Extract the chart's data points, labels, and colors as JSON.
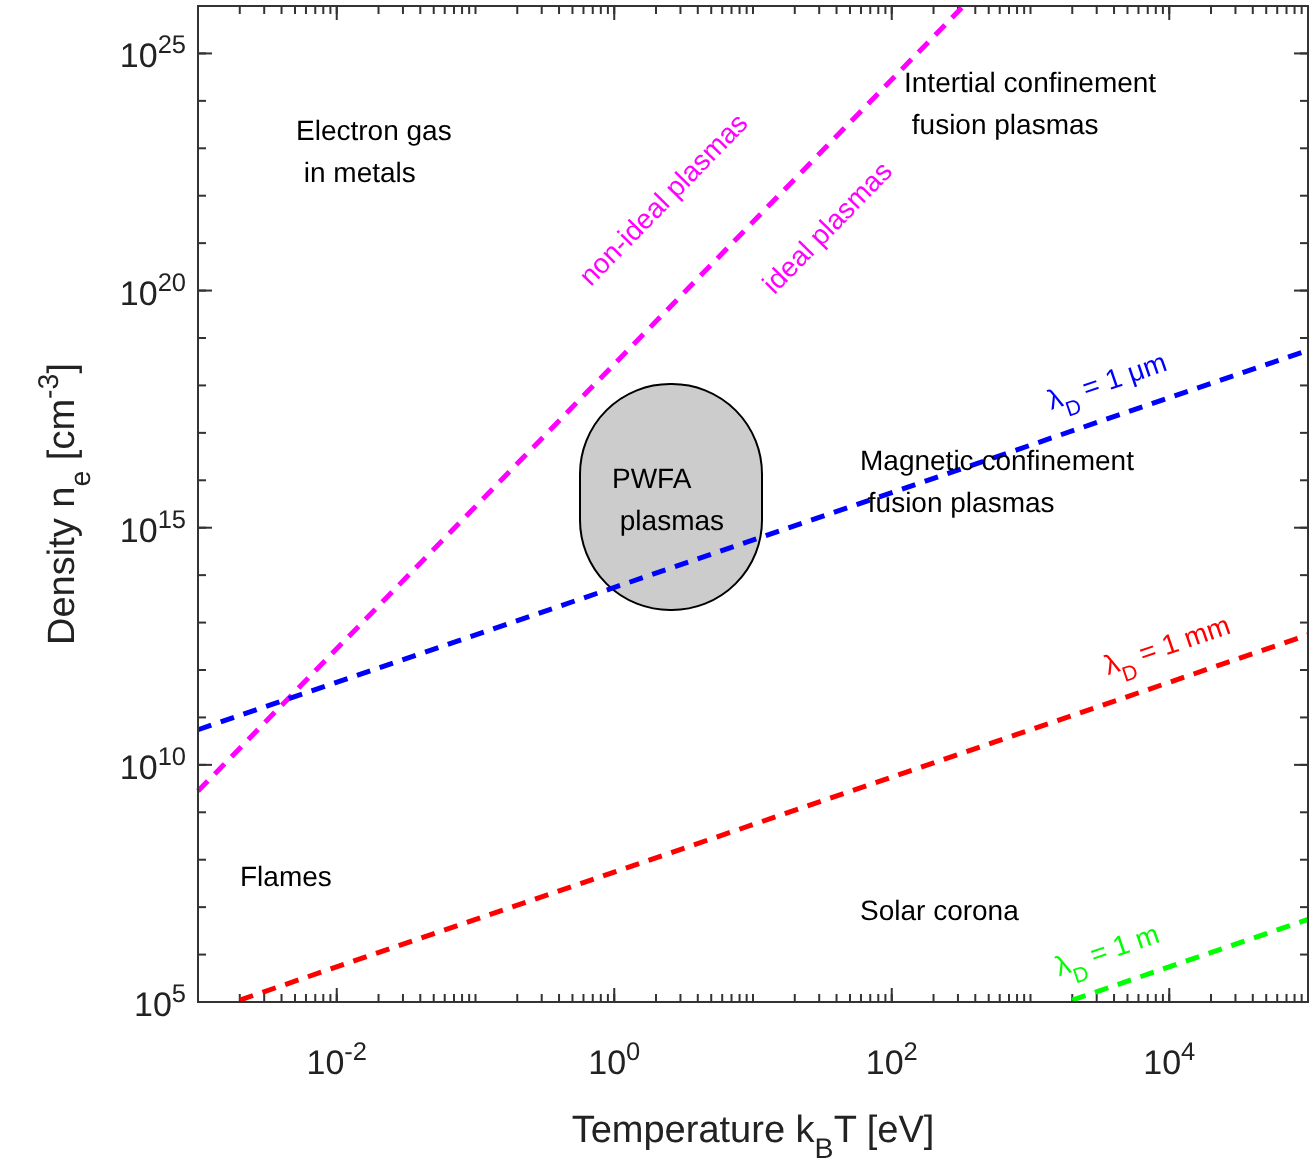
{
  "chart_data": {
    "type": "line",
    "xlabel": "Temperature k$_{B}$T [eV]",
    "ylabel": "Density n$_{e}$ [cm$^{-3}$]",
    "log": "xy",
    "grid": false,
    "line_style": "dashed",
    "xlim": [
      0.001,
      100000
    ],
    "ylim": [
      100000,
      1e+26
    ],
    "xticks": [
      {
        "value": 0.01,
        "label": "10$^{-2}$"
      },
      {
        "value": 1,
        "label": "10$^{0}$"
      },
      {
        "value": 100,
        "label": "10$^{2}$"
      },
      {
        "value": 10000,
        "label": "10$^{4}$"
      }
    ],
    "yticks": [
      {
        "value": 100000,
        "label": "10$^{5}$"
      },
      {
        "value": 10000000000.0,
        "label": "10$^{10}$"
      },
      {
        "value": 1000000000000000.0,
        "label": "10$^{15}$"
      },
      {
        "value": 1e+20,
        "label": "10$^{20}$"
      },
      {
        "value": 1e+25,
        "label": "10$^{25}$"
      }
    ],
    "series": [
      {
        "color": "#ff00ff",
        "x": [
          0.001,
          329
        ],
        "values": [
          2800000000.0,
          1e+26
        ]
      },
      {
        "name": "λ$_{D}$ = 1 μm",
        "color": "#0000ff",
        "x": [
          0.001,
          100000
        ],
        "values": [
          55000000000.0,
          5.5e+18
        ]
      },
      {
        "name": "λ$_{D}$ = 1 mm",
        "color": "#ff0000",
        "x": [
          0.002,
          100000
        ],
        "values": [
          110000,
          5500000000000.0
        ]
      },
      {
        "name": "λ$_{D}$ = 1 m",
        "color": "#00ff00",
        "x": [
          2000,
          100000
        ],
        "values": [
          110000,
          5500000.0
        ]
      }
    ],
    "annotations": [
      "Electron gas\n in metals",
      "Intertial confinement\n fusion plasmas",
      "Magnetic confinement\n fusion plasmas",
      "PWFA\n plasmas",
      "Flames",
      "Solar corona",
      "non-ideal plasmas",
      "ideal plasmas"
    ]
  }
}
